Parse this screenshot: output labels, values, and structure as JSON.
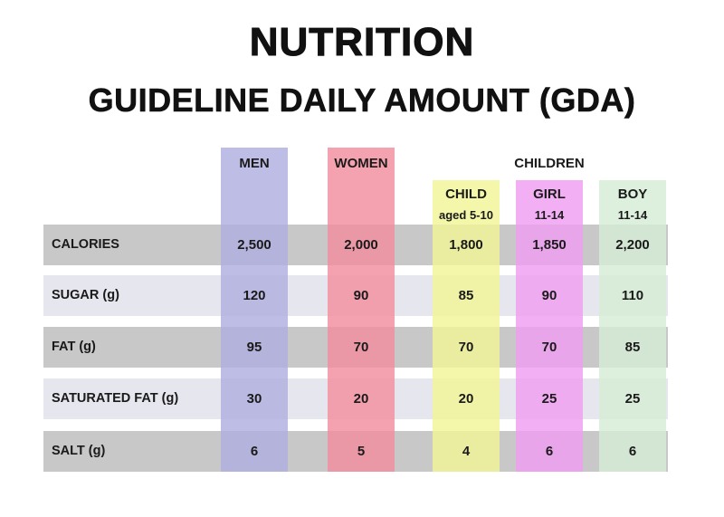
{
  "title": "NUTRITION",
  "subtitle": "GUIDELINE DAILY AMOUNT (GDA)",
  "chart_data": {
    "type": "table",
    "title": "NUTRITION",
    "subtitle": "GUIDELINE DAILY AMOUNT (GDA)",
    "group_label": "CHILDREN",
    "columns": [
      {
        "key": "men",
        "label": "MEN",
        "sub": "",
        "color": "#aeaedf"
      },
      {
        "key": "women",
        "label": "WOMEN",
        "sub": "",
        "color": "#f38d9f"
      },
      {
        "key": "child",
        "label": "CHILD",
        "sub": "aged 5-10",
        "color": "#f1f596"
      },
      {
        "key": "girl",
        "label": "GIRL",
        "sub": "11-14",
        "color": "#f09ef0"
      },
      {
        "key": "boy",
        "label": "BOY",
        "sub": "11-14",
        "color": "#d6edd6"
      }
    ],
    "rows": [
      {
        "label": "CALORIES",
        "values": [
          "2,500",
          "2,000",
          "1,800",
          "1,850",
          "2,200"
        ]
      },
      {
        "label": "SUGAR (g)",
        "values": [
          "120",
          "90",
          "85",
          "90",
          "110"
        ]
      },
      {
        "label": "FAT (g)",
        "values": [
          "95",
          "70",
          "70",
          "70",
          "85"
        ]
      },
      {
        "label": "SATURATED FAT (g)",
        "values": [
          "30",
          "20",
          "20",
          "25",
          "25"
        ]
      },
      {
        "label": "SALT (g)",
        "values": [
          "6",
          "5",
          "4",
          "6",
          "6"
        ]
      }
    ],
    "band_colors": [
      "#c8c8c8",
      "#e6e6ee"
    ]
  }
}
